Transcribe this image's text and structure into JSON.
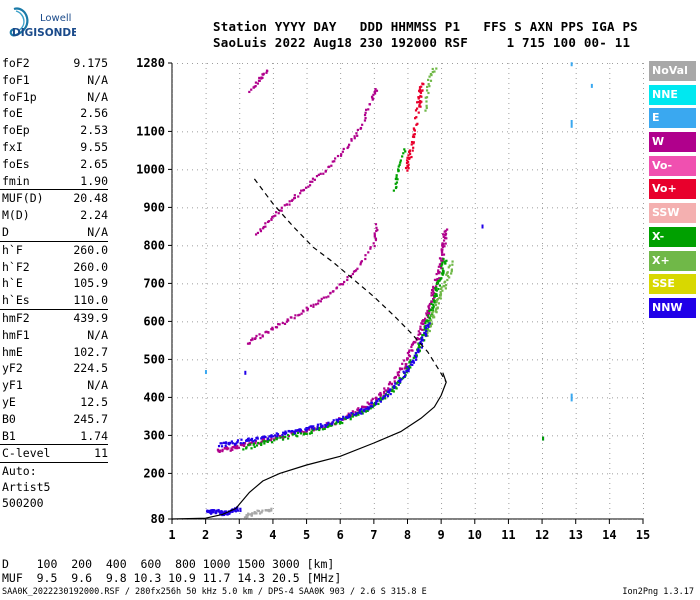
{
  "logo": {
    "line1": "Lowell",
    "line2": "DIGISONDE"
  },
  "header": {
    "row1": "Station YYYY DAY   DDD HHMMSS P1   FFS S AXN PPS IGA PS",
    "row2": "SaoLuis 2022 Aug18 230 192000 RSF     1 715 100 00- 11"
  },
  "params": [
    {
      "k": "foF2",
      "v": "9.175"
    },
    {
      "k": "foF1",
      "v": "N/A"
    },
    {
      "k": "foF1p",
      "v": "N/A"
    },
    {
      "k": "foE",
      "v": "2.56"
    },
    {
      "k": "foEp",
      "v": "2.53"
    },
    {
      "k": "fxI",
      "v": "9.55"
    },
    {
      "k": "foEs",
      "v": "2.65"
    },
    {
      "k": "fmin",
      "v": "1.90"
    },
    {
      "sep": true
    },
    {
      "k": "MUF(D)",
      "v": "20.48"
    },
    {
      "k": "M(D)",
      "v": "2.24"
    },
    {
      "k": "D",
      "v": "N/A"
    },
    {
      "sep": true
    },
    {
      "k": "h`F",
      "v": "260.0"
    },
    {
      "k": "h`F2",
      "v": "260.0"
    },
    {
      "k": "h`E",
      "v": "105.9"
    },
    {
      "k": "h`Es",
      "v": "110.0"
    },
    {
      "sep": true
    },
    {
      "k": "hmF2",
      "v": "439.9"
    },
    {
      "k": "hmF1",
      "v": "N/A"
    },
    {
      "k": "hmE",
      "v": "102.7"
    },
    {
      "k": "yF2",
      "v": "224.5"
    },
    {
      "k": "yF1",
      "v": "N/A"
    },
    {
      "k": "yE",
      "v": "12.5"
    },
    {
      "k": "B0",
      "v": "245.7"
    },
    {
      "k": "B1",
      "v": "1.74"
    },
    {
      "sep": true
    },
    {
      "k": "C-level",
      "v": "11"
    },
    {
      "sep": true
    }
  ],
  "auto": {
    "l1": "Auto:",
    "l2": "Artist5",
    "l3": "500200"
  },
  "legend": [
    {
      "label": "NoVal",
      "color": "#a8a8a8"
    },
    {
      "label": "NNE",
      "color": "#00e8f0"
    },
    {
      "label": "E",
      "color": "#3aa8f0"
    },
    {
      "label": "W",
      "color": "#b0008c"
    },
    {
      "label": "Vo-",
      "color": "#f050b0"
    },
    {
      "label": "Vo+",
      "color": "#e8002c"
    },
    {
      "label": "SSW",
      "color": "#f4b0b0"
    },
    {
      "label": "X-",
      "color": "#00a000"
    },
    {
      "label": "X+",
      "color": "#70b848"
    },
    {
      "label": "SSE",
      "color": "#d8d800"
    },
    {
      "label": "NNW",
      "color": "#2000e8"
    }
  ],
  "muf": {
    "row1": "D    100  200  400  600  800 1000 1500 3000 [km]",
    "row2": "MUF  9.5  9.6  9.8 10.3 10.9 11.7 14.3 20.5 [MHz]"
  },
  "footer": {
    "left": "SAA0K_2022230192000.RSF / 280fx256h 50 kHz 5.0 km / DPS-4 SAA0K 903 / 2.6 S 315.8 E",
    "right": "Ion2Png 1.3.17"
  },
  "chart_data": {
    "type": "scatter",
    "xlim": [
      1,
      15
    ],
    "ylim": [
      80,
      1280
    ],
    "x_ticks": [
      1,
      2,
      3,
      4,
      5,
      6,
      7,
      8,
      9,
      10,
      11,
      12,
      13,
      14,
      15
    ],
    "y_ticks": [
      80,
      200,
      300,
      400,
      500,
      600,
      700,
      800,
      900,
      1000,
      1100,
      1280
    ],
    "series": [
      {
        "label": "W",
        "color": "#b0008c",
        "points": [
          [
            2.35,
            262
          ],
          [
            2.8,
            270
          ],
          [
            3.3,
            282
          ],
          [
            4,
            296
          ],
          [
            4.7,
            310
          ],
          [
            5.2,
            321
          ],
          [
            5.8,
            336
          ],
          [
            6.3,
            358
          ],
          [
            6.8,
            384
          ],
          [
            7.3,
            420
          ],
          [
            7.7,
            462
          ],
          [
            8.0,
            510
          ],
          [
            8.3,
            565
          ],
          [
            8.5,
            612
          ],
          [
            8.7,
            655
          ],
          [
            8.8,
            700
          ],
          [
            8.95,
            755
          ],
          [
            9.05,
            800
          ],
          [
            9.1,
            850
          ]
        ]
      },
      {
        "label": "X-",
        "color": "#00a000",
        "points": [
          [
            3.1,
            270
          ],
          [
            3.8,
            286
          ],
          [
            4.6,
            303
          ],
          [
            5.4,
            320
          ],
          [
            6.0,
            340
          ],
          [
            6.6,
            362
          ],
          [
            7.1,
            390
          ],
          [
            7.6,
            430
          ],
          [
            8.0,
            480
          ],
          [
            8.3,
            530
          ],
          [
            8.5,
            580
          ],
          [
            8.65,
            625
          ],
          [
            8.8,
            670
          ],
          [
            8.95,
            720
          ],
          [
            9.1,
            770
          ]
        ]
      },
      {
        "label": "X+",
        "color": "#70b848",
        "points": [
          [
            8.5,
            560
          ],
          [
            8.7,
            610
          ],
          [
            8.9,
            660
          ],
          [
            9.1,
            700
          ],
          [
            9.3,
            760
          ]
        ]
      },
      {
        "label": "NNW",
        "color": "#2000e8",
        "points": [
          [
            2.4,
            278
          ],
          [
            2.8,
            282
          ],
          [
            3.3,
            290
          ],
          [
            3.9,
            300
          ],
          [
            4.5,
            312
          ],
          [
            5.0,
            320
          ],
          [
            5.6,
            332
          ],
          [
            6.2,
            350
          ],
          [
            6.7,
            372
          ],
          [
            7.2,
            398
          ],
          [
            7.7,
            440
          ],
          [
            8.1,
            492
          ],
          [
            8.4,
            548
          ],
          [
            8.6,
            600
          ]
        ]
      },
      {
        "label": "Vo+",
        "color": "#e8002c",
        "points": [
          [
            8.3,
            1170
          ],
          [
            8.4,
            1230
          ],
          [
            8.2,
            1110
          ],
          [
            8.05,
            1040
          ],
          [
            7.95,
            1000
          ]
        ]
      },
      {
        "label": "NoVal",
        "color": "#a8a8a8",
        "points": [
          [
            3.1,
            90
          ],
          [
            3.5,
            98
          ],
          [
            4.0,
            110
          ]
        ]
      },
      {
        "label": "NNW",
        "color": "#2000e8",
        "points": [
          [
            2.0,
            100
          ],
          [
            2.3,
            102
          ],
          [
            2.5,
            96
          ],
          [
            2.7,
            104
          ],
          [
            3.0,
            110
          ]
        ]
      }
    ],
    "echo_traces": [
      {
        "label": "W",
        "color": "#b0008c",
        "points": [
          [
            3.2,
            545
          ],
          [
            3.6,
            565
          ],
          [
            4.0,
            585
          ],
          [
            4.5,
            610
          ],
          [
            5.0,
            635
          ],
          [
            5.5,
            665
          ],
          [
            6.0,
            700
          ],
          [
            6.5,
            745
          ],
          [
            7.0,
            810
          ],
          [
            7.05,
            860
          ]
        ]
      },
      {
        "label": "W",
        "color": "#b0008c",
        "points": [
          [
            3.5,
            835
          ],
          [
            3.9,
            870
          ],
          [
            4.3,
            905
          ],
          [
            4.7,
            935
          ],
          [
            5.2,
            975
          ],
          [
            5.7,
            1015
          ],
          [
            6.2,
            1065
          ],
          [
            6.6,
            1115
          ],
          [
            6.9,
            1185
          ],
          [
            7.05,
            1220
          ]
        ]
      },
      {
        "label": "W",
        "color": "#b0008c",
        "points": [
          [
            3.3,
            1210
          ],
          [
            3.6,
            1240
          ],
          [
            3.8,
            1265
          ]
        ]
      },
      {
        "label": "X-",
        "color": "#00a000",
        "points": [
          [
            7.6,
            950
          ],
          [
            7.7,
            1000
          ],
          [
            7.9,
            1060
          ]
        ]
      },
      {
        "label": "X+",
        "color": "#70b848",
        "points": [
          [
            8.5,
            1160
          ],
          [
            8.6,
            1230
          ],
          [
            8.8,
            1275
          ]
        ]
      }
    ],
    "scattered_marks": [
      {
        "color": "#2000e8",
        "points": [
          [
            3.15,
            470
          ],
          [
            10.2,
            855
          ],
          [
            12.0,
            297
          ]
        ]
      },
      {
        "color": "#3aa8f0",
        "points": [
          [
            1.98,
            472
          ],
          [
            12.85,
            1130
          ],
          [
            12.85,
            1120
          ],
          [
            12.85,
            400
          ],
          [
            12.85,
            410
          ],
          [
            13.45,
            1225
          ],
          [
            12.85,
            1282
          ]
        ]
      },
      {
        "color": "#00a000",
        "points": [
          [
            12.0,
            297
          ]
        ]
      }
    ],
    "true_height_profile": [
      [
        1.0,
        80
      ],
      [
        2.0,
        82
      ],
      [
        2.5,
        92
      ],
      [
        2.9,
        108
      ],
      [
        3.3,
        150
      ],
      [
        3.7,
        180
      ],
      [
        4.2,
        200
      ],
      [
        5.0,
        222
      ],
      [
        6.0,
        245
      ],
      [
        7.0,
        280
      ],
      [
        7.8,
        310
      ],
      [
        8.4,
        345
      ],
      [
        8.8,
        375
      ],
      [
        9.0,
        405
      ],
      [
        9.15,
        440
      ],
      [
        9.05,
        465
      ]
    ],
    "model_curve": [
      [
        3.45,
        975
      ],
      [
        4.0,
        910
      ],
      [
        4.6,
        850
      ],
      [
        5.2,
        795
      ],
      [
        5.8,
        755
      ],
      [
        6.4,
        710
      ],
      [
        7.0,
        665
      ],
      [
        7.6,
        615
      ],
      [
        8.1,
        570
      ],
      [
        8.6,
        520
      ],
      [
        8.95,
        470
      ],
      [
        9.15,
        440
      ]
    ]
  }
}
